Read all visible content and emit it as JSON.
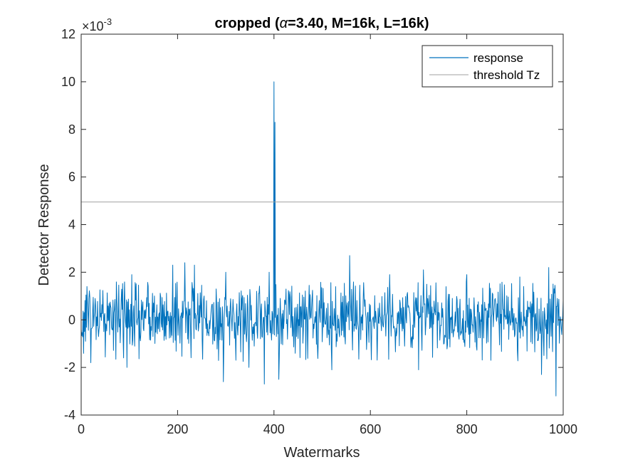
{
  "chart_data": {
    "type": "line",
    "title": {
      "before": "cropped (",
      "symbol": "α",
      "after": "=3.40, M=16k, L=16k)"
    },
    "xlabel": "Watermarks",
    "ylabel": "Detector Response",
    "xlim": [
      0,
      1000
    ],
    "ylim": [
      -4,
      12
    ],
    "x_ticks": [
      "0",
      "200",
      "400",
      "600",
      "800",
      "1000"
    ],
    "y_ticks": [
      "-4",
      "-2",
      "0",
      "2",
      "4",
      "6",
      "8",
      "10",
      "12"
    ],
    "y_scale_multiplier": {
      "base": "×10",
      "exponent": "-3"
    },
    "grid": false,
    "legend_position": "top-right",
    "series": [
      {
        "name": "response",
        "color": "#0072BD",
        "style": "line",
        "description_points": [
          {
            "x": 0,
            "y": -0.4
          },
          {
            "x": 12,
            "y": 1.4
          },
          {
            "x": 20,
            "y": -1.8
          },
          {
            "x": 95,
            "y": -2.0
          },
          {
            "x": 105,
            "y": 1.9
          },
          {
            "x": 190,
            "y": 2.3
          },
          {
            "x": 215,
            "y": 2.4
          },
          {
            "x": 235,
            "y": 2.3
          },
          {
            "x": 295,
            "y": -2.6
          },
          {
            "x": 300,
            "y": 2.0
          },
          {
            "x": 348,
            "y": -2.0
          },
          {
            "x": 380,
            "y": -2.7
          },
          {
            "x": 390,
            "y": 2.0
          },
          {
            "x": 400,
            "y": 10.0
          },
          {
            "x": 402,
            "y": 8.3
          },
          {
            "x": 410,
            "y": -2.5
          },
          {
            "x": 520,
            "y": -2.1
          },
          {
            "x": 557,
            "y": 2.7
          },
          {
            "x": 640,
            "y": 1.9
          },
          {
            "x": 700,
            "y": -2.1
          },
          {
            "x": 710,
            "y": 2.1
          },
          {
            "x": 800,
            "y": 1.9
          },
          {
            "x": 850,
            "y": -1.7
          },
          {
            "x": 910,
            "y": 1.8
          },
          {
            "x": 955,
            "y": -2.3
          },
          {
            "x": 970,
            "y": 2.2
          },
          {
            "x": 985,
            "y": -3.2
          },
          {
            "x": 1000,
            "y": 0.8
          }
        ]
      },
      {
        "name": "threshold Tz",
        "color": "#A0A0A0",
        "style": "horizontal-line",
        "value": 4.95
      }
    ]
  }
}
